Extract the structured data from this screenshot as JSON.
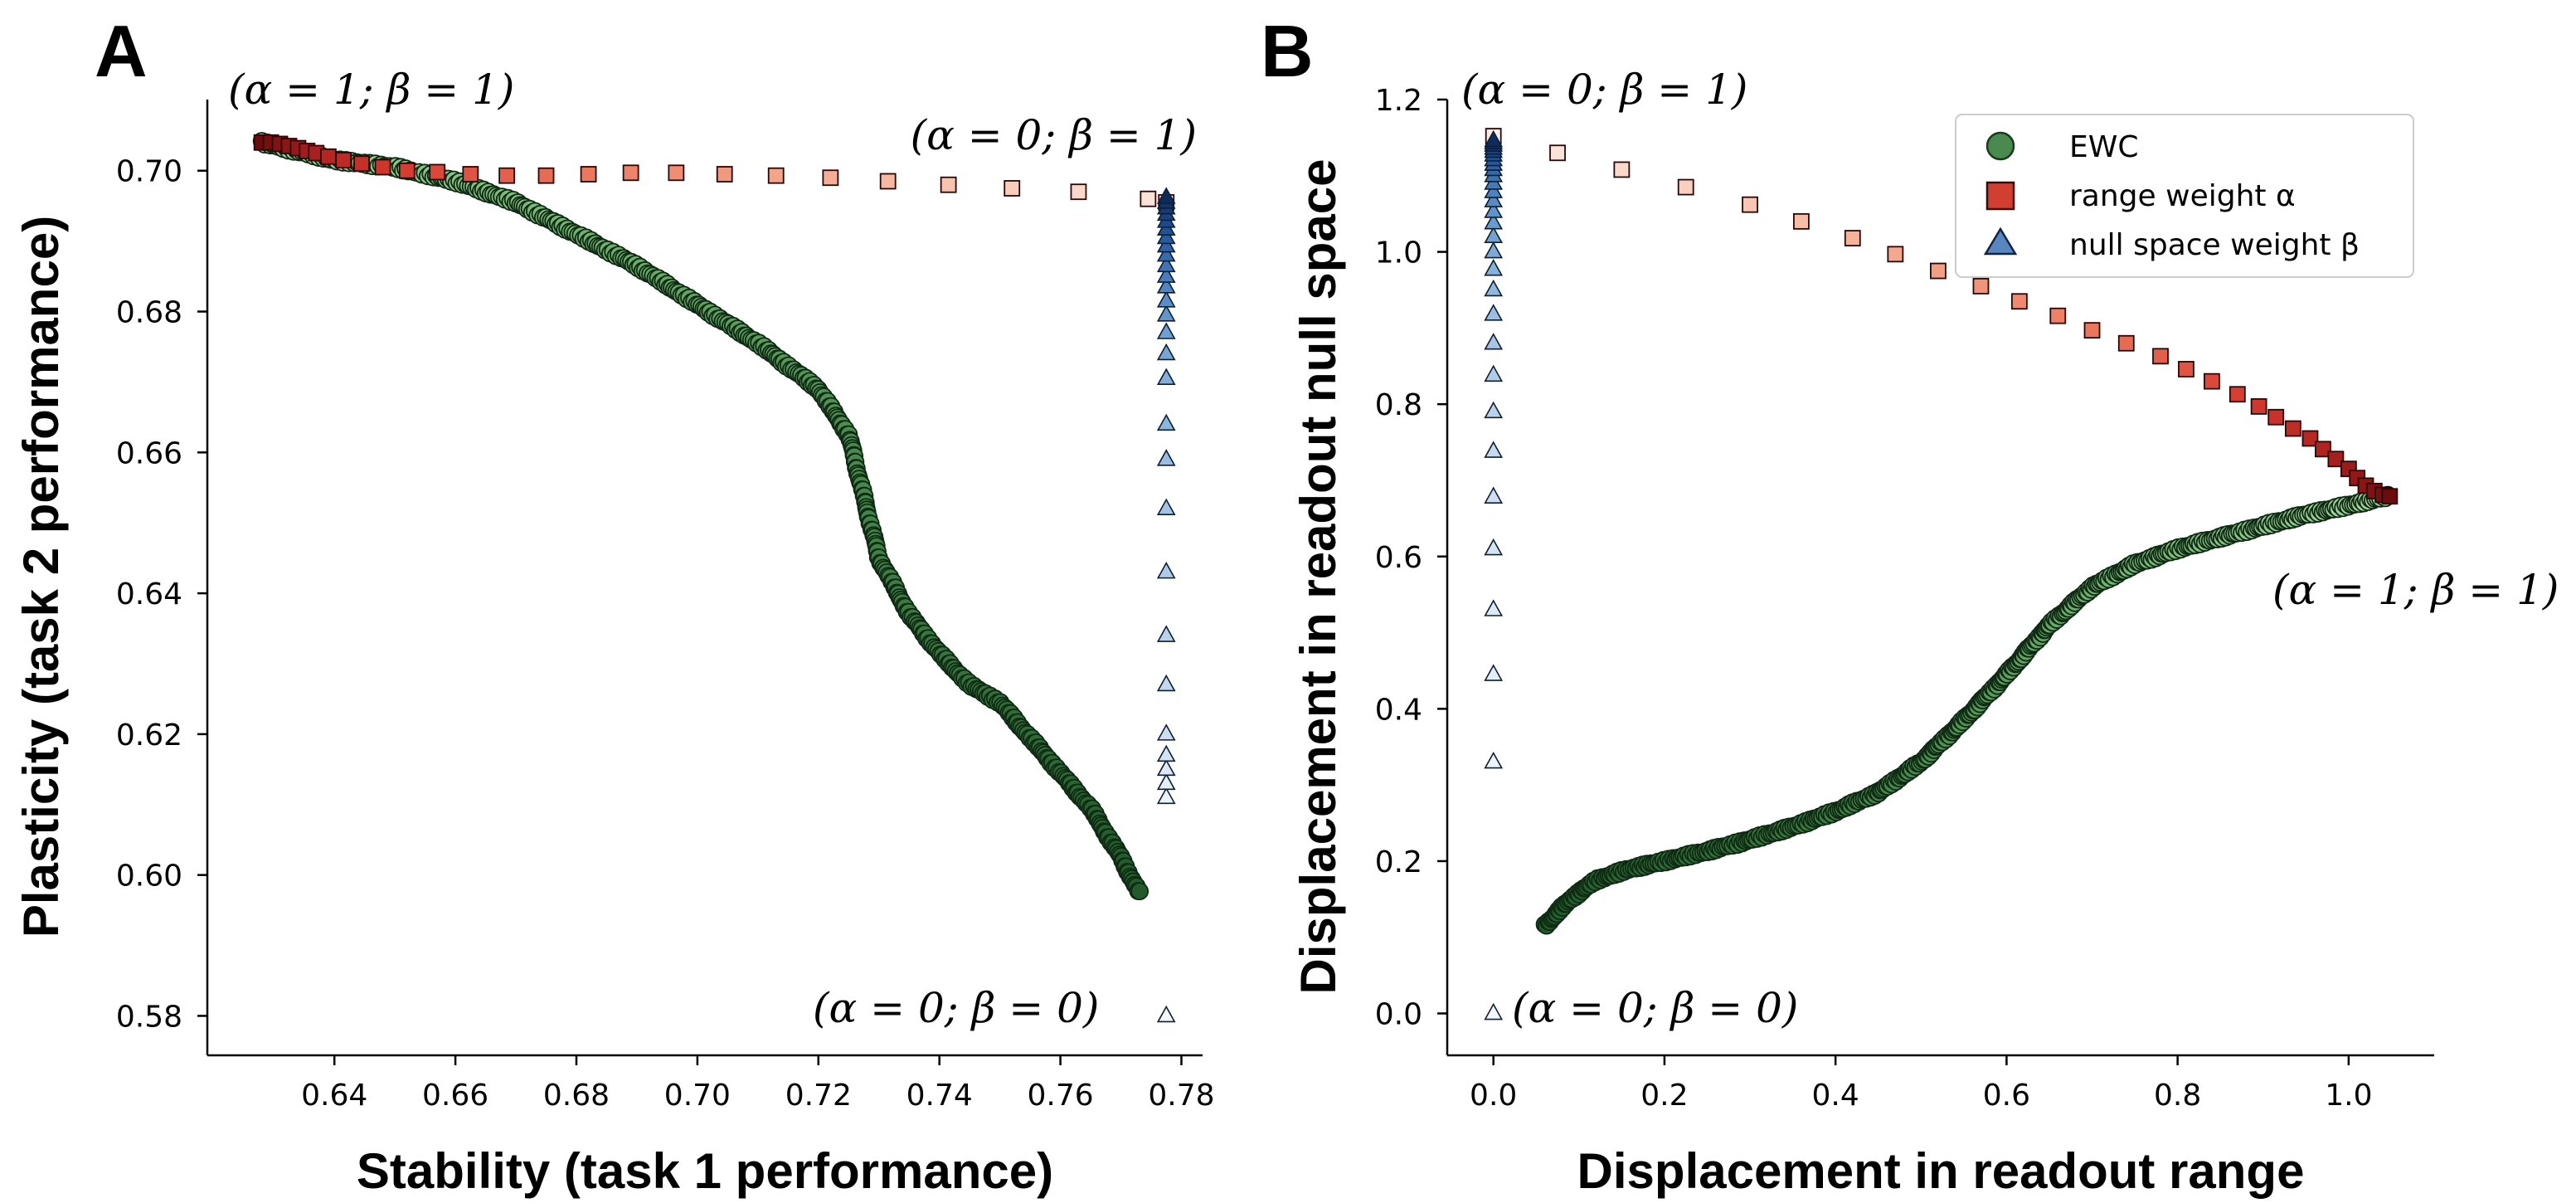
{
  "chart_data": [
    {
      "panel": "A",
      "type": "scatter",
      "xlabel": "Stability (task 1 performance)",
      "ylabel": "Plasticity (task 2 performance)",
      "xlim": [
        0.619,
        0.7835
      ],
      "ylim": [
        0.5744,
        0.7101
      ],
      "xticks": [
        0.64,
        0.66,
        0.68,
        0.7,
        0.72,
        0.74,
        0.76,
        0.78
      ],
      "yticks": [
        0.58,
        0.6,
        0.62,
        0.64,
        0.66,
        0.68,
        0.7
      ],
      "annotations": [
        "(α = 1;  β = 1)",
        "(α = 0;  β = 1)",
        "(α = 0;  β = 0)"
      ],
      "ewc_path": [
        [
          0.628,
          0.704
        ],
        [
          0.64,
          0.7015
        ],
        [
          0.65,
          0.7005
        ],
        [
          0.66,
          0.6985
        ],
        [
          0.67,
          0.6955
        ],
        [
          0.68,
          0.691
        ],
        [
          0.69,
          0.6865
        ],
        [
          0.7,
          0.681
        ],
        [
          0.71,
          0.6755
        ],
        [
          0.72,
          0.669
        ],
        [
          0.725,
          0.6625
        ],
        [
          0.73,
          0.645
        ],
        [
          0.735,
          0.637
        ],
        [
          0.74,
          0.6315
        ],
        [
          0.745,
          0.627
        ],
        [
          0.75,
          0.6245
        ],
        [
          0.755,
          0.6195
        ],
        [
          0.76,
          0.6145
        ],
        [
          0.765,
          0.6095
        ],
        [
          0.77,
          0.6025
        ],
        [
          0.773,
          0.5975
        ]
      ],
      "range_weight": {
        "x": [
          0.628,
          0.6295,
          0.631,
          0.6325,
          0.634,
          0.6355,
          0.637,
          0.639,
          0.6415,
          0.6445,
          0.648,
          0.652,
          0.657,
          0.6625,
          0.6685,
          0.675,
          0.682,
          0.689,
          0.6965,
          0.7045,
          0.713,
          0.722,
          0.7315,
          0.7415,
          0.752,
          0.763,
          0.7745,
          0.7775
        ],
        "y": [
          0.704,
          0.704,
          0.7038,
          0.7035,
          0.7032,
          0.7028,
          0.7025,
          0.702,
          0.7015,
          0.701,
          0.7005,
          0.7,
          0.6998,
          0.6995,
          0.6993,
          0.6993,
          0.6995,
          0.6997,
          0.6997,
          0.6995,
          0.6993,
          0.699,
          0.6985,
          0.698,
          0.6975,
          0.697,
          0.696,
          0.6955
        ]
      },
      "null_space_weight": {
        "x": 0.7775,
        "y": [
          0.58,
          0.611,
          0.613,
          0.615,
          0.617,
          0.62,
          0.627,
          0.634,
          0.643,
          0.652,
          0.659,
          0.664,
          0.6705,
          0.674,
          0.677,
          0.6795,
          0.6815,
          0.6835,
          0.685,
          0.6865,
          0.688,
          0.6893,
          0.6905,
          0.6917,
          0.6928,
          0.6938,
          0.6947,
          0.6955,
          0.6962
        ]
      }
    },
    {
      "panel": "B",
      "type": "scatter",
      "xlabel": "Displacement in readout range",
      "ylabel": "Displacement in readout null space",
      "xlim": [
        -0.054,
        1.1
      ],
      "ylim": [
        -0.055,
        1.2
      ],
      "xticks": [
        0.0,
        0.2,
        0.4,
        0.6,
        0.8,
        1.0
      ],
      "yticks": [
        0.0,
        0.2,
        0.4,
        0.6,
        0.8,
        1.0,
        1.2
      ],
      "annotations": [
        "(α = 0;  β = 1)",
        "(α = 1;  β = 1)",
        "(α = 0;  β = 0)"
      ],
      "legend": [
        "EWC",
        "range weight α",
        "null space weight β"
      ],
      "ewc_path": [
        [
          0.06,
          0.115
        ],
        [
          0.09,
          0.15
        ],
        [
          0.12,
          0.175
        ],
        [
          0.16,
          0.19
        ],
        [
          0.2,
          0.2
        ],
        [
          0.25,
          0.213
        ],
        [
          0.3,
          0.228
        ],
        [
          0.35,
          0.245
        ],
        [
          0.4,
          0.265
        ],
        [
          0.45,
          0.29
        ],
        [
          0.5,
          0.33
        ],
        [
          0.55,
          0.385
        ],
        [
          0.6,
          0.445
        ],
        [
          0.65,
          0.51
        ],
        [
          0.7,
          0.56
        ],
        [
          0.75,
          0.59
        ],
        [
          0.8,
          0.61
        ],
        [
          0.85,
          0.625
        ],
        [
          0.9,
          0.64
        ],
        [
          0.95,
          0.655
        ],
        [
          1.0,
          0.667
        ],
        [
          1.045,
          0.679
        ]
      ],
      "range_weight": {
        "x": [
          0.0,
          0.075,
          0.15,
          0.225,
          0.3,
          0.36,
          0.42,
          0.47,
          0.52,
          0.57,
          0.615,
          0.66,
          0.7,
          0.74,
          0.78,
          0.81,
          0.84,
          0.87,
          0.895,
          0.915,
          0.935,
          0.955,
          0.97,
          0.985,
          1.0,
          1.01,
          1.02,
          1.03,
          1.04,
          1.048
        ],
        "y": [
          1.152,
          1.13,
          1.108,
          1.085,
          1.062,
          1.04,
          1.018,
          0.997,
          0.975,
          0.955,
          0.935,
          0.916,
          0.897,
          0.88,
          0.863,
          0.846,
          0.83,
          0.813,
          0.797,
          0.783,
          0.768,
          0.755,
          0.741,
          0.728,
          0.715,
          0.703,
          0.693,
          0.686,
          0.681,
          0.679
        ]
      },
      "null_space_weight": {
        "x": 0.0,
        "y": [
          0.0,
          0.33,
          0.445,
          0.53,
          0.61,
          0.678,
          0.738,
          0.79,
          0.838,
          0.88,
          0.918,
          0.95,
          0.977,
          1.0,
          1.02,
          1.038,
          1.053,
          1.067,
          1.079,
          1.09,
          1.1,
          1.108,
          1.115,
          1.121,
          1.127,
          1.132,
          1.136,
          1.14,
          1.143,
          1.146
        ]
      }
    }
  ]
}
